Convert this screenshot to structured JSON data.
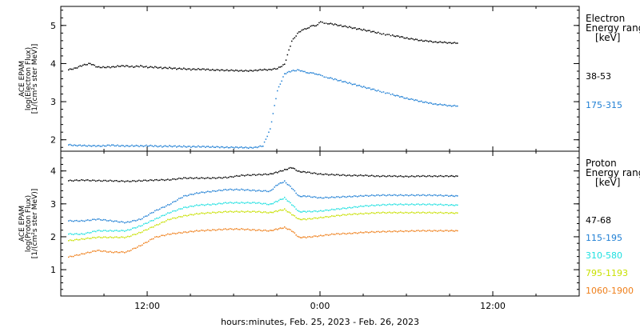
{
  "chart_data": [
    {
      "type": "scatter",
      "ylabel_lines": [
        "ACE EPAM",
        "log(Electron Flux)",
        "[1/(cm²s ster MeV)]"
      ],
      "ylim": [
        1.7,
        5.5
      ],
      "yticks": [
        2,
        3,
        4,
        5
      ],
      "legend_title": [
        "Electron",
        "Energy range",
        "[keV]"
      ],
      "legend_placement": "right",
      "series": [
        {
          "name": "38-53",
          "color": "#000000",
          "x": [
            6.5,
            7.0,
            7.5,
            8.0,
            8.5,
            9.0,
            9.5,
            10.0,
            10.5,
            11.0,
            11.5,
            12.0,
            12.5,
            13.0,
            13.5,
            14.0,
            14.5,
            15.0,
            15.5,
            16.0,
            16.5,
            17.0,
            17.5,
            18.0,
            18.5,
            19.0,
            19.5,
            20.0,
            20.5,
            21.0,
            21.5,
            22.0,
            22.5,
            22.8,
            23.1,
            23.4,
            23.7,
            24.0,
            24.5,
            25.0,
            25.5,
            26.0,
            26.5,
            27.0,
            27.5,
            28.0,
            28.5,
            29.0,
            29.5,
            30.0,
            30.5,
            31.0,
            31.5,
            32.0,
            32.5,
            33.0,
            33.5
          ],
          "y": [
            3.85,
            3.9,
            3.97,
            4.02,
            3.92,
            3.92,
            3.92,
            3.95,
            3.95,
            3.93,
            3.95,
            3.92,
            3.92,
            3.9,
            3.9,
            3.88,
            3.88,
            3.86,
            3.87,
            3.86,
            3.85,
            3.84,
            3.84,
            3.83,
            3.83,
            3.82,
            3.84,
            3.85,
            3.86,
            3.88,
            4.0,
            4.6,
            4.85,
            4.9,
            4.95,
            5.0,
            5.02,
            5.1,
            5.07,
            5.04,
            5.0,
            4.97,
            4.93,
            4.9,
            4.86,
            4.82,
            4.78,
            4.75,
            4.72,
            4.68,
            4.65,
            4.62,
            4.6,
            4.58,
            4.57,
            4.56,
            4.55
          ]
        },
        {
          "name": "175-315",
          "color": "#1f7fd4",
          "x": [
            6.5,
            7.0,
            7.5,
            8.0,
            8.5,
            9.0,
            9.5,
            10.0,
            10.5,
            11.0,
            11.5,
            12.0,
            12.5,
            13.0,
            13.5,
            14.0,
            14.5,
            15.0,
            15.5,
            16.0,
            16.5,
            17.0,
            17.5,
            18.0,
            18.5,
            19.0,
            19.5,
            20.0,
            20.5,
            21.0,
            21.5,
            22.0,
            22.5,
            22.8,
            23.1,
            23.4,
            23.7,
            24.0,
            24.5,
            25.0,
            25.5,
            26.0,
            26.5,
            27.0,
            27.5,
            28.0,
            28.5,
            29.0,
            29.5,
            30.0,
            30.5,
            31.0,
            31.5,
            32.0,
            32.5,
            33.0,
            33.5
          ],
          "y": [
            1.88,
            1.87,
            1.86,
            1.86,
            1.85,
            1.86,
            1.87,
            1.86,
            1.85,
            1.86,
            1.85,
            1.86,
            1.85,
            1.84,
            1.85,
            1.84,
            1.84,
            1.83,
            1.84,
            1.83,
            1.83,
            1.82,
            1.82,
            1.81,
            1.82,
            1.8,
            1.82,
            1.85,
            2.3,
            3.3,
            3.75,
            3.82,
            3.85,
            3.8,
            3.78,
            3.76,
            3.75,
            3.7,
            3.65,
            3.6,
            3.55,
            3.5,
            3.45,
            3.4,
            3.35,
            3.3,
            3.25,
            3.2,
            3.15,
            3.1,
            3.06,
            3.02,
            2.98,
            2.95,
            2.93,
            2.91,
            2.9
          ]
        }
      ]
    },
    {
      "type": "scatter",
      "ylabel_lines": [
        "ACE EPAM",
        "log(Proton Flux)",
        "[1/(cm²s ster MeV)]"
      ],
      "ylim": [
        0.2,
        4.6
      ],
      "yticks": [
        1,
        2,
        3,
        4
      ],
      "xlabel": "hours:minutes, Feb. 25, 2023 - Feb. 26, 2023",
      "xlim": [
        6,
        42
      ],
      "xticks": [
        12,
        24,
        36
      ],
      "xticklabels": [
        "12:00",
        "0:00",
        "12:00"
      ],
      "legend_title": [
        "Proton",
        "Energy range",
        "[keV]"
      ],
      "legend_placement": "right",
      "series": [
        {
          "name": "47-68",
          "color": "#000000",
          "x": [
            6.5,
            7.5,
            8.5,
            9.5,
            10.5,
            11.5,
            12.5,
            13.5,
            14.5,
            15.5,
            16.5,
            17.5,
            18.5,
            19.5,
            20.5,
            21.0,
            21.5,
            22.0,
            22.5,
            23.0,
            24.0,
            25.0,
            26.0,
            27.0,
            28.0,
            29.0,
            30.0,
            31.0,
            32.0,
            33.0,
            33.5
          ],
          "y": [
            3.72,
            3.74,
            3.72,
            3.72,
            3.7,
            3.72,
            3.74,
            3.75,
            3.8,
            3.8,
            3.8,
            3.82,
            3.88,
            3.9,
            3.92,
            3.98,
            4.05,
            4.12,
            4.0,
            3.98,
            3.92,
            3.9,
            3.88,
            3.88,
            3.86,
            3.86,
            3.85,
            3.86,
            3.86,
            3.86,
            3.86
          ]
        },
        {
          "name": "115-195",
          "color": "#1f7fd4",
          "x": [
            6.5,
            7.5,
            8.5,
            9.5,
            10.5,
            11.5,
            12.5,
            13.5,
            14.5,
            15.5,
            16.5,
            17.5,
            18.5,
            19.5,
            20.5,
            21.0,
            21.5,
            22.0,
            22.5,
            23.0,
            24.0,
            25.0,
            26.0,
            27.0,
            28.0,
            29.0,
            30.0,
            31.0,
            32.0,
            33.0,
            33.5
          ],
          "y": [
            2.5,
            2.5,
            2.55,
            2.5,
            2.45,
            2.55,
            2.8,
            3.0,
            3.25,
            3.35,
            3.4,
            3.45,
            3.45,
            3.42,
            3.4,
            3.6,
            3.7,
            3.5,
            3.25,
            3.25,
            3.2,
            3.22,
            3.24,
            3.26,
            3.28,
            3.28,
            3.28,
            3.28,
            3.28,
            3.26,
            3.26
          ]
        },
        {
          "name": "310-580",
          "color": "#1ee0e0",
          "x": [
            6.5,
            7.5,
            8.5,
            9.5,
            10.5,
            11.5,
            12.5,
            13.5,
            14.5,
            15.5,
            16.5,
            17.5,
            18.5,
            19.5,
            20.5,
            21.0,
            21.5,
            22.0,
            22.5,
            23.0,
            24.0,
            25.0,
            26.0,
            27.0,
            28.0,
            29.0,
            30.0,
            31.0,
            32.0,
            33.0,
            33.5
          ],
          "y": [
            2.1,
            2.1,
            2.2,
            2.2,
            2.2,
            2.35,
            2.55,
            2.75,
            2.9,
            2.98,
            3.0,
            3.05,
            3.05,
            3.05,
            3.0,
            3.1,
            3.2,
            3.0,
            2.78,
            2.78,
            2.8,
            2.85,
            2.9,
            2.95,
            2.98,
            3.0,
            3.0,
            3.0,
            3.0,
            2.98,
            2.98
          ]
        },
        {
          "name": "795-1193",
          "color": "#c8e000",
          "x": [
            6.5,
            7.5,
            8.5,
            9.5,
            10.5,
            11.5,
            12.5,
            13.5,
            14.5,
            15.5,
            16.5,
            17.5,
            18.5,
            19.5,
            20.5,
            21.0,
            21.5,
            22.0,
            22.5,
            23.0,
            24.0,
            25.0,
            26.0,
            27.0,
            28.0,
            29.0,
            30.0,
            31.0,
            32.0,
            33.0,
            33.5
          ],
          "y": [
            1.9,
            1.95,
            2.0,
            2.0,
            2.0,
            2.15,
            2.35,
            2.55,
            2.65,
            2.72,
            2.75,
            2.78,
            2.78,
            2.78,
            2.75,
            2.8,
            2.85,
            2.7,
            2.55,
            2.55,
            2.6,
            2.65,
            2.7,
            2.72,
            2.75,
            2.75,
            2.75,
            2.75,
            2.75,
            2.74,
            2.74
          ]
        },
        {
          "name": "1060-1900",
          "color": "#ef7f1a",
          "x": [
            6.5,
            7.5,
            8.5,
            9.5,
            10.5,
            11.5,
            12.5,
            13.5,
            14.5,
            15.5,
            16.5,
            17.5,
            18.5,
            19.5,
            20.5,
            21.0,
            21.5,
            22.0,
            22.5,
            23.0,
            24.0,
            25.0,
            26.0,
            27.0,
            28.0,
            29.0,
            30.0,
            31.0,
            32.0,
            33.0,
            33.5
          ],
          "y": [
            1.4,
            1.5,
            1.6,
            1.55,
            1.55,
            1.75,
            2.0,
            2.1,
            2.15,
            2.2,
            2.22,
            2.25,
            2.25,
            2.22,
            2.2,
            2.25,
            2.3,
            2.2,
            2.0,
            2.0,
            2.05,
            2.1,
            2.12,
            2.15,
            2.17,
            2.18,
            2.19,
            2.2,
            2.2,
            2.2,
            2.2
          ]
        }
      ]
    }
  ]
}
